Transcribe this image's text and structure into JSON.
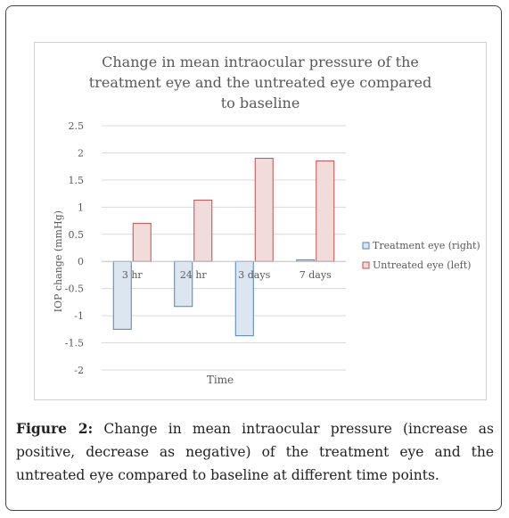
{
  "chart_data": {
    "type": "bar",
    "title_lines": [
      "Change in mean intraocular pressure of the",
      "treatment eye and the untreated eye compared",
      "to baseline"
    ],
    "xlabel": "Time",
    "ylabel": "IOP change (mmHg)",
    "ylim": [
      -2,
      2.5
    ],
    "y_ticks": [
      "2.5",
      "2",
      "1.5",
      "1",
      "0.5",
      "0",
      "-0.5",
      "-1",
      "-1.5",
      "-2"
    ],
    "grid": true,
    "legend_position": "right",
    "categories": [
      "3 hr",
      "24 hr",
      "3 days",
      "7 days"
    ],
    "series": [
      {
        "name": "Treatment eye (right)",
        "values": [
          -1.25,
          -0.83,
          -1.37,
          0.03
        ],
        "fill": "#dce6f1",
        "stroke": "#4f81bd"
      },
      {
        "name": "Untreated eye (left)",
        "values": [
          0.7,
          1.13,
          1.9,
          1.85
        ],
        "fill": "#f2dcdb",
        "stroke": "#c0504d"
      }
    ]
  },
  "caption": {
    "label": "Figure 2:",
    "text": " Change in mean intraocular pressure (increase as positive, decrease as negative) of the treatment eye and the untreated eye compared to baseline at different time points."
  }
}
